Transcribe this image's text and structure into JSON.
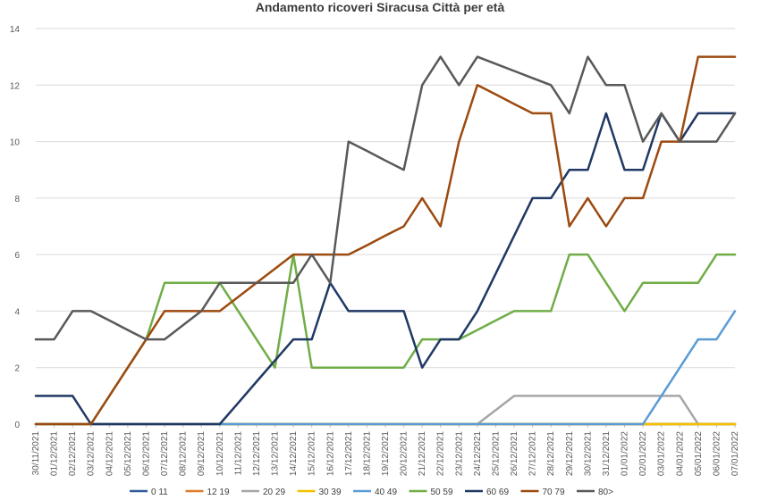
{
  "chart_data": {
    "type": "line",
    "title": "Andamento ricoveri Siracusa Città per età",
    "xlabel": "",
    "ylabel": "",
    "ylim": [
      0,
      14
    ],
    "yticks": [
      0,
      2,
      4,
      6,
      8,
      10,
      12,
      14
    ],
    "grid": "horizontal",
    "legend_placement": "bottom",
    "categories": [
      "30/11/2021",
      "01/12/2021",
      "02/12/2021",
      "03/12/2021",
      "04/12/2021",
      "05/12/2021",
      "06/12/2021",
      "07/12/2021",
      "08/12/2021",
      "09/12/2021",
      "10/12/2021",
      "11/12/2021",
      "12/12/2021",
      "13/12/2021",
      "14/12/2021",
      "15/12/2021",
      "16/12/2021",
      "17/12/2021",
      "18/12/2021",
      "19/12/2021",
      "20/12/2021",
      "21/12/2021",
      "22/12/2021",
      "23/12/2021",
      "24/12/2021",
      "25/12/2021",
      "26/12/2021",
      "27/12/2021",
      "28/12/2021",
      "29/12/2021",
      "30/12/2021",
      "31/12/2021",
      "01/01/2022",
      "02/01/2022",
      "03/01/2022",
      "04/01/2022",
      "05/01/2022",
      "06/01/2022",
      "07/01/2022"
    ],
    "series": [
      {
        "name": "0 11",
        "color": "#2e5d9a",
        "values": [
          0,
          0,
          0,
          0,
          0,
          0,
          0,
          0,
          0,
          0,
          0,
          0,
          0,
          0,
          0,
          0,
          0,
          0,
          0,
          0,
          0,
          0,
          0,
          0,
          0,
          0,
          0,
          0,
          0,
          0,
          0,
          0,
          0,
          0,
          0,
          0,
          0,
          0,
          0
        ]
      },
      {
        "name": "12 19",
        "color": "#e07b2a",
        "values": [
          0,
          0,
          0,
          0,
          0,
          0,
          0,
          0,
          0,
          0,
          0,
          0,
          0,
          0,
          0,
          0,
          0,
          0,
          0,
          0,
          0,
          0,
          0,
          0,
          0,
          0,
          0,
          0,
          0,
          0,
          0,
          0,
          0,
          0,
          0,
          0,
          0,
          0,
          0
        ]
      },
      {
        "name": "20 29",
        "color": "#a6a6a6",
        "values": [
          0,
          0,
          0,
          0,
          0,
          0,
          0,
          0,
          0,
          0,
          0,
          0,
          0,
          0,
          0,
          0,
          0,
          0,
          0,
          0,
          0,
          0,
          0,
          0,
          0,
          0.5,
          1,
          1,
          1,
          1,
          1,
          1,
          1,
          1,
          1,
          1,
          0,
          0,
          0
        ]
      },
      {
        "name": "30 39",
        "color": "#f2c200",
        "values": [
          0,
          0,
          0,
          0,
          0,
          0,
          0,
          0,
          0,
          0,
          0,
          0,
          0,
          0,
          0,
          0,
          0,
          0,
          0,
          0,
          0,
          0,
          0,
          0,
          0,
          0,
          0,
          0,
          0,
          0,
          0,
          0,
          0,
          0,
          0,
          0,
          0,
          0,
          0
        ]
      },
      {
        "name": "40 49",
        "color": "#5b9bd5",
        "values": [
          0,
          0,
          0,
          0,
          0,
          0,
          0,
          0,
          0,
          0,
          0,
          0,
          0,
          0,
          0,
          0,
          0,
          0,
          0,
          0,
          0,
          0,
          0,
          0,
          0,
          0,
          0,
          0,
          0,
          0,
          0,
          0,
          0,
          0,
          1,
          2,
          3,
          3,
          4
        ]
      },
      {
        "name": "50 59",
        "color": "#70ad47",
        "values": [
          0,
          0,
          0,
          0,
          1,
          2,
          3,
          5,
          5,
          5,
          5,
          4,
          3,
          2,
          6,
          2,
          2,
          2,
          2,
          2,
          2,
          3,
          3,
          3,
          3.33,
          3.67,
          4,
          4,
          4,
          6,
          6,
          5,
          4,
          5,
          5,
          5,
          5,
          6,
          6
        ]
      },
      {
        "name": "60 69",
        "color": "#1f3864",
        "values": [
          1,
          1,
          1,
          0,
          0,
          0,
          0,
          0,
          0,
          0,
          0,
          0.75,
          1.5,
          2.25,
          3,
          3,
          5,
          4,
          4,
          4,
          4,
          2,
          3,
          3,
          4,
          5.33,
          6.67,
          8,
          8,
          9,
          9,
          11,
          9,
          9,
          11,
          10,
          11,
          11,
          11
        ]
      },
      {
        "name": "70 79",
        "color": "#9c4a10",
        "values": [
          0,
          0,
          0,
          0,
          1,
          2,
          3,
          4,
          4,
          4,
          4,
          4.5,
          5,
          5.5,
          6,
          6,
          6,
          6,
          6.33,
          6.67,
          7,
          8,
          7,
          10,
          12,
          11.67,
          11.33,
          11,
          11,
          7,
          8,
          7,
          8,
          8,
          10,
          10,
          13,
          13,
          13
        ]
      },
      {
        "name": "80>",
        "color": "#595959",
        "values": [
          3,
          3,
          4,
          4,
          3.67,
          3.33,
          3,
          3,
          3.5,
          4,
          5,
          5,
          5,
          5,
          5,
          6,
          5,
          10,
          9.67,
          9.33,
          9,
          12,
          13,
          12,
          13,
          12.75,
          12.5,
          12.25,
          12,
          11,
          13,
          12,
          12,
          10,
          11,
          10,
          10,
          10,
          11
        ]
      }
    ]
  }
}
